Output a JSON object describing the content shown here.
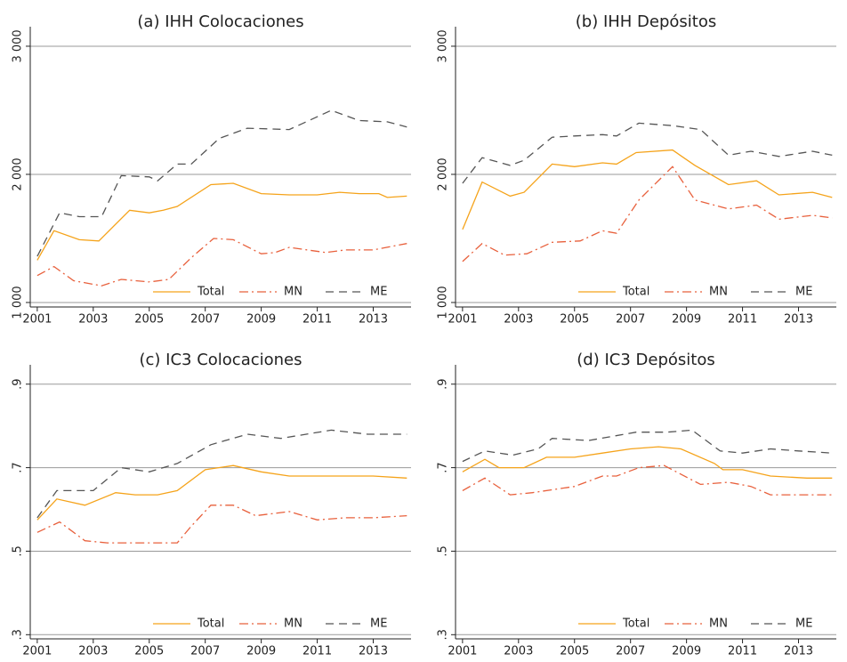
{
  "chart_data": [
    {
      "type": "line",
      "title": "(a) IHH Colocaciones",
      "xlim": [
        2000.75,
        2014.35
      ],
      "xticks": [
        2001,
        2003,
        2005,
        2007,
        2009,
        2011,
        2013
      ],
      "ylim": [
        965,
        3083
      ],
      "yticks": [
        {
          "value": 1000,
          "label": "1 000"
        },
        {
          "value": 2000,
          "label": "2 000"
        },
        {
          "value": 3000,
          "label": "3 000"
        }
      ],
      "grid": true,
      "legend": "lower right",
      "series": [
        {
          "name": "Total",
          "color": "#f5a31a",
          "style": "solid",
          "x": [
            2001,
            2001.6,
            2002.5,
            2003.2,
            2004.3,
            2005,
            2005.5,
            2006,
            2007.2,
            2008,
            2009,
            2010,
            2011,
            2011.8,
            2012.5,
            2013.2,
            2013.5,
            2014.2
          ],
          "values": [
            1330,
            1560,
            1490,
            1480,
            1720,
            1700,
            1720,
            1750,
            1920,
            1930,
            1850,
            1840,
            1840,
            1860,
            1850,
            1850,
            1820,
            1830
          ]
        },
        {
          "name": "MN",
          "color": "#e8603c",
          "style": "dashdot",
          "x": [
            2001,
            2001.6,
            2002.3,
            2003.3,
            2004,
            2005,
            2005.7,
            2006.5,
            2007.3,
            2008,
            2009,
            2009.5,
            2010,
            2011.3,
            2012,
            2013,
            2014.2
          ],
          "values": [
            1210,
            1280,
            1170,
            1130,
            1180,
            1160,
            1180,
            1350,
            1500,
            1490,
            1380,
            1390,
            1430,
            1390,
            1410,
            1410,
            1460
          ]
        },
        {
          "name": "ME",
          "color": "#555555",
          "style": "dash",
          "x": [
            2001,
            2001.8,
            2002.5,
            2003.3,
            2004,
            2005,
            2005.3,
            2006,
            2006.5,
            2007.5,
            2008.5,
            2010,
            2011.5,
            2012.5,
            2013.5,
            2014.2
          ],
          "values": [
            1360,
            1700,
            1670,
            1670,
            1990,
            1980,
            1950,
            2080,
            2080,
            2280,
            2360,
            2350,
            2500,
            2420,
            2410,
            2370
          ]
        }
      ]
    },
    {
      "type": "line",
      "title": "(b) IHH Depósitos",
      "xlim": [
        2000.75,
        2014.35
      ],
      "xticks": [
        2001,
        2003,
        2005,
        2007,
        2009,
        2011,
        2013
      ],
      "ylim": [
        965,
        3083
      ],
      "yticks": [
        {
          "value": 1000,
          "label": "1 000"
        },
        {
          "value": 2000,
          "label": "2 000"
        },
        {
          "value": 3000,
          "label": "3 000"
        }
      ],
      "grid": true,
      "legend": "lower right",
      "series": [
        {
          "name": "Total",
          "color": "#f5a31a",
          "style": "solid",
          "x": [
            2001,
            2001.7,
            2002.7,
            2003.2,
            2004.2,
            2005,
            2006,
            2006.5,
            2007.2,
            2008.5,
            2009.3,
            2010.5,
            2011.5,
            2012.3,
            2013.5,
            2014.2
          ],
          "values": [
            1570,
            1940,
            1830,
            1860,
            2080,
            2060,
            2090,
            2080,
            2170,
            2190,
            2070,
            1920,
            1950,
            1840,
            1860,
            1820
          ]
        },
        {
          "name": "MN",
          "color": "#e8603c",
          "style": "dashdot",
          "x": [
            2001,
            2001.7,
            2002.5,
            2003.3,
            2004.2,
            2005.2,
            2006,
            2006.5,
            2007.3,
            2008.5,
            2009.3,
            2010.5,
            2011.5,
            2012.3,
            2013.5,
            2014.2
          ],
          "values": [
            1320,
            1460,
            1370,
            1380,
            1470,
            1480,
            1560,
            1540,
            1800,
            2060,
            1800,
            1730,
            1760,
            1650,
            1680,
            1660
          ]
        },
        {
          "name": "ME",
          "color": "#555555",
          "style": "dash",
          "x": [
            2001,
            2001.7,
            2002.7,
            2003.2,
            2004.2,
            2005,
            2006,
            2006.5,
            2007.3,
            2008.5,
            2009.5,
            2010.5,
            2011.3,
            2012.3,
            2013.5,
            2014.2
          ],
          "values": [
            1930,
            2130,
            2070,
            2110,
            2290,
            2300,
            2310,
            2300,
            2400,
            2380,
            2350,
            2150,
            2180,
            2140,
            2180,
            2150
          ]
        }
      ]
    },
    {
      "type": "line",
      "title": "(c) IC3 Colocaciones",
      "xlim": [
        2000.75,
        2014.35
      ],
      "xticks": [
        2001,
        2003,
        2005,
        2007,
        2009,
        2011,
        2013
      ],
      "ylim": [
        0.29,
        0.925
      ],
      "yticks": [
        {
          "value": 0.3,
          "label": ".3"
        },
        {
          "value": 0.5,
          "label": ".5"
        },
        {
          "value": 0.7,
          "label": ".7"
        },
        {
          "value": 0.9,
          "label": ".9"
        }
      ],
      "grid": true,
      "legend": "lower right",
      "series": [
        {
          "name": "Total",
          "color": "#f5a31a",
          "style": "solid",
          "x": [
            2001,
            2001.7,
            2002.7,
            2003.8,
            2004.5,
            2005.3,
            2006,
            2007,
            2008,
            2009,
            2010,
            2011,
            2012,
            2013,
            2014.2
          ],
          "values": [
            0.575,
            0.625,
            0.61,
            0.64,
            0.635,
            0.635,
            0.645,
            0.695,
            0.705,
            0.69,
            0.68,
            0.68,
            0.68,
            0.68,
            0.675
          ]
        },
        {
          "name": "MN",
          "color": "#e8603c",
          "style": "dashdot",
          "x": [
            2001,
            2001.8,
            2002.7,
            2003.5,
            2005,
            2006,
            2006.5,
            2007.2,
            2008,
            2008.8,
            2010,
            2011,
            2012,
            2013,
            2014.2
          ],
          "values": [
            0.545,
            0.57,
            0.525,
            0.52,
            0.52,
            0.52,
            0.56,
            0.61,
            0.61,
            0.585,
            0.595,
            0.575,
            0.58,
            0.58,
            0.585
          ]
        },
        {
          "name": "ME",
          "color": "#555555",
          "style": "dash",
          "x": [
            2001,
            2001.7,
            2003,
            2004,
            2005,
            2006,
            2007.2,
            2008.5,
            2009.7,
            2011.5,
            2012.8,
            2014.2
          ],
          "values": [
            0.58,
            0.645,
            0.645,
            0.7,
            0.69,
            0.71,
            0.755,
            0.78,
            0.77,
            0.79,
            0.78,
            0.78
          ]
        }
      ]
    },
    {
      "type": "line",
      "title": "(d) IC3 Depósitos",
      "xlim": [
        2000.75,
        2014.35
      ],
      "xticks": [
        2001,
        2003,
        2005,
        2007,
        2009,
        2011,
        2013
      ],
      "ylim": [
        0.29,
        0.925
      ],
      "yticks": [
        {
          "value": 0.3,
          "label": ".3"
        },
        {
          "value": 0.5,
          "label": ".5"
        },
        {
          "value": 0.7,
          "label": ".7"
        },
        {
          "value": 0.9,
          "label": ".9"
        }
      ],
      "grid": true,
      "legend": "lower right",
      "series": [
        {
          "name": "Total",
          "color": "#f5a31a",
          "style": "solid",
          "x": [
            2001,
            2001.8,
            2002.3,
            2003.2,
            2004,
            2005,
            2006,
            2007,
            2008,
            2008.8,
            2010,
            2010.3,
            2011,
            2012,
            2013.3,
            2014.2
          ],
          "values": [
            0.69,
            0.72,
            0.7,
            0.7,
            0.725,
            0.725,
            0.735,
            0.745,
            0.75,
            0.745,
            0.71,
            0.695,
            0.695,
            0.68,
            0.675,
            0.675
          ]
        },
        {
          "name": "MN",
          "color": "#e8603c",
          "style": "dashdot",
          "x": [
            2001,
            2001.8,
            2002.7,
            2003.5,
            2005,
            2006,
            2006.5,
            2007.3,
            2008.2,
            2009.5,
            2010.5,
            2011.3,
            2012,
            2013.3,
            2014.2
          ],
          "values": [
            0.645,
            0.675,
            0.635,
            0.64,
            0.655,
            0.68,
            0.68,
            0.7,
            0.705,
            0.66,
            0.665,
            0.655,
            0.635,
            0.635,
            0.635
          ]
        },
        {
          "name": "ME",
          "color": "#555555",
          "style": "dash",
          "x": [
            2001,
            2001.8,
            2002.8,
            2003.7,
            2004.2,
            2005.5,
            2007.2,
            2008.3,
            2009.2,
            2010.2,
            2011,
            2012,
            2013,
            2014.2
          ],
          "values": [
            0.715,
            0.74,
            0.73,
            0.745,
            0.77,
            0.765,
            0.785,
            0.785,
            0.79,
            0.74,
            0.735,
            0.745,
            0.74,
            0.735
          ]
        }
      ]
    }
  ]
}
